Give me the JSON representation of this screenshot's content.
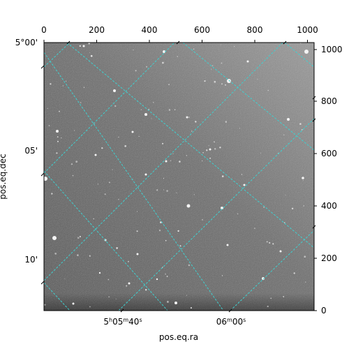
{
  "figure": {
    "xlabel": "pos.eq.ra",
    "ylabel": "pos.eq.dec",
    "colors": {
      "grid": "#3fd0d0",
      "frame": "#000000",
      "sky_dark": "#3a3a3a",
      "sky_mid": "#707070",
      "sky_light": "#9a9a9a"
    },
    "top_ticks": [
      "0",
      "200",
      "400",
      "600",
      "800",
      "1000"
    ],
    "right_ticks": [
      "0",
      "200",
      "400",
      "600",
      "800",
      "1000"
    ],
    "left_ticks": [
      "5°00'",
      "05'",
      "10'"
    ],
    "bottom_ticks": [
      {
        "h": "5",
        "hsup": "h",
        "m": "05",
        "msup": "m",
        "s": "40",
        "ssup": "s"
      },
      {
        "m": "06",
        "msup": "m",
        "s": "00",
        "ssup": "s"
      }
    ]
  }
}
